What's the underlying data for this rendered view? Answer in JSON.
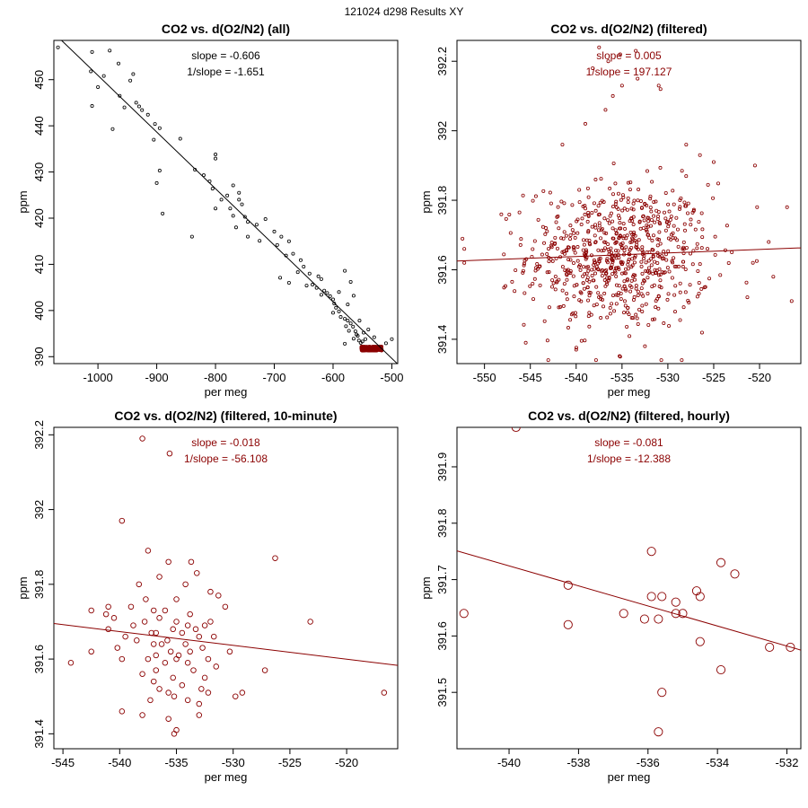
{
  "page": {
    "supertitle": "121024   d298   Results XY"
  },
  "colors": {
    "black": "#000000",
    "darkred": "#8b0000"
  },
  "chart_data": [
    {
      "type": "scatter",
      "title": "CO2 vs. d(O2/N2) (all)",
      "xlabel": "per meg",
      "ylabel": "ppm",
      "xlim": [
        -1075,
        -490
      ],
      "ylim": [
        388.5,
        458.5
      ],
      "xticks": [
        -1000,
        -900,
        -800,
        -700,
        -600,
        -500
      ],
      "yticks": [
        390,
        400,
        410,
        420,
        430,
        440,
        450
      ],
      "point_color": "#000000",
      "line_color": "#000000",
      "marker": "small",
      "annotations": [
        "slope = -0.606",
        "1/slope = -1.651"
      ],
      "annotation_color": "#000000",
      "fit": {
        "x": [
          -1075,
          -490
        ],
        "y": [
          460.1,
          388.4
        ]
      },
      "points": [
        {
          "x": -1068,
          "y": 457.0
        },
        {
          "x": -1010,
          "y": 456.0
        },
        {
          "x": -980,
          "y": 456.3
        },
        {
          "x": -965,
          "y": 453.5
        },
        {
          "x": -1012,
          "y": 451.8
        },
        {
          "x": -990,
          "y": 450.8
        },
        {
          "x": -940,
          "y": 451.2
        },
        {
          "x": -945,
          "y": 449.8
        },
        {
          "x": -1000,
          "y": 448.4
        },
        {
          "x": -963,
          "y": 446.5
        },
        {
          "x": -1010,
          "y": 444.3
        },
        {
          "x": -955,
          "y": 444.0
        },
        {
          "x": -935,
          "y": 445.0
        },
        {
          "x": -930,
          "y": 444.2
        },
        {
          "x": -925,
          "y": 443.4
        },
        {
          "x": -915,
          "y": 442.4
        },
        {
          "x": -903,
          "y": 440.4
        },
        {
          "x": -975,
          "y": 439.3
        },
        {
          "x": -895,
          "y": 439.5
        },
        {
          "x": -905,
          "y": 437.0
        },
        {
          "x": -860,
          "y": 437.2
        },
        {
          "x": -835,
          "y": 430.5
        },
        {
          "x": -895,
          "y": 430.3
        },
        {
          "x": -800,
          "y": 433.8
        },
        {
          "x": -800,
          "y": 432.9
        },
        {
          "x": -820,
          "y": 429.3
        },
        {
          "x": -810,
          "y": 428.0
        },
        {
          "x": -805,
          "y": 426.4
        },
        {
          "x": -900,
          "y": 427.6
        },
        {
          "x": -770,
          "y": 427.1
        },
        {
          "x": -760,
          "y": 425.5
        },
        {
          "x": -780,
          "y": 424.9
        },
        {
          "x": -790,
          "y": 424.0
        },
        {
          "x": -760,
          "y": 424.0
        },
        {
          "x": -755,
          "y": 423.0
        },
        {
          "x": -800,
          "y": 422.1
        },
        {
          "x": -775,
          "y": 422.1
        },
        {
          "x": -770,
          "y": 420.5
        },
        {
          "x": -750,
          "y": 420.3
        },
        {
          "x": -745,
          "y": 419.2
        },
        {
          "x": -765,
          "y": 418.0
        },
        {
          "x": -730,
          "y": 418.6
        },
        {
          "x": -715,
          "y": 419.8
        },
        {
          "x": -745,
          "y": 416.0
        },
        {
          "x": -700,
          "y": 417.1
        },
        {
          "x": -688,
          "y": 416.0
        },
        {
          "x": -725,
          "y": 415.1
        },
        {
          "x": -840,
          "y": 416.0
        },
        {
          "x": -890,
          "y": 421.0
        },
        {
          "x": -695,
          "y": 414.2
        },
        {
          "x": -675,
          "y": 415.0
        },
        {
          "x": -680,
          "y": 411.9
        },
        {
          "x": -668,
          "y": 412.3
        },
        {
          "x": -655,
          "y": 410.9
        },
        {
          "x": -650,
          "y": 409.5
        },
        {
          "x": -660,
          "y": 408.3
        },
        {
          "x": -640,
          "y": 408.0
        },
        {
          "x": -625,
          "y": 407.4
        },
        {
          "x": -620,
          "y": 406.8
        },
        {
          "x": -690,
          "y": 407.1
        },
        {
          "x": -675,
          "y": 406.0
        },
        {
          "x": -645,
          "y": 405.4
        },
        {
          "x": -635,
          "y": 405.6
        },
        {
          "x": -628,
          "y": 404.9
        },
        {
          "x": -615,
          "y": 404.3
        },
        {
          "x": -610,
          "y": 403.8
        },
        {
          "x": -620,
          "y": 403.4
        },
        {
          "x": -605,
          "y": 403.1
        },
        {
          "x": -600,
          "y": 402.4
        },
        {
          "x": -598,
          "y": 401.5
        },
        {
          "x": -595,
          "y": 400.6
        },
        {
          "x": -590,
          "y": 399.8
        },
        {
          "x": -587,
          "y": 398.6
        },
        {
          "x": -580,
          "y": 398.2
        },
        {
          "x": -575,
          "y": 397.8
        },
        {
          "x": -570,
          "y": 397.2
        },
        {
          "x": -578,
          "y": 396.6
        },
        {
          "x": -566,
          "y": 396.5
        },
        {
          "x": -573,
          "y": 395.6
        },
        {
          "x": -562,
          "y": 395.5
        },
        {
          "x": -558,
          "y": 394.5
        },
        {
          "x": -565,
          "y": 393.9
        },
        {
          "x": -556,
          "y": 393.5
        },
        {
          "x": -553,
          "y": 393.0
        },
        {
          "x": -550,
          "y": 393.3
        },
        {
          "x": -560,
          "y": 394.8
        },
        {
          "x": -575,
          "y": 401.3
        },
        {
          "x": -580,
          "y": 408.6
        },
        {
          "x": -570,
          "y": 406.2
        },
        {
          "x": -565,
          "y": 403.2
        },
        {
          "x": -590,
          "y": 404.0
        },
        {
          "x": -600,
          "y": 399.5
        },
        {
          "x": -555,
          "y": 397.8
        },
        {
          "x": -548,
          "y": 395.2
        },
        {
          "x": -540,
          "y": 395.9
        },
        {
          "x": -530,
          "y": 394.2
        },
        {
          "x": -510,
          "y": 392.9
        },
        {
          "x": -500,
          "y": 393.8
        },
        {
          "x": -545,
          "y": 393.8
        },
        {
          "x": -580,
          "y": 392.8
        }
      ],
      "cluster": {
        "x_range": [
          -552,
          -517
        ],
        "y_range": [
          391.3,
          392.2
        ],
        "count": 380,
        "color": "#8b0000"
      }
    },
    {
      "type": "scatter",
      "title": "CO2 vs. d(O2/N2) (filtered)",
      "xlabel": "per meg",
      "ylabel": "ppm",
      "xlim": [
        -553,
        -515.5
      ],
      "ylim": [
        391.33,
        392.26
      ],
      "xticks": [
        -550,
        -545,
        -540,
        -535,
        -530,
        -525,
        -520
      ],
      "yticks": [
        391.4,
        391.6,
        391.8,
        392.0,
        392.2
      ],
      "point_color": "#8b0000",
      "line_color": "#8b0000",
      "marker": "small",
      "annotations": [
        "slope = 0.005",
        "1/slope = 197.127"
      ],
      "annotation_color": "#8b0000",
      "fit": {
        "x": [
          -553,
          -515.5
        ],
        "y": [
          391.625,
          391.663
        ]
      },
      "generated": {
        "count": 720,
        "x_mean": -535.3,
        "x_sd": 5.0,
        "y_mean": 391.64,
        "y_sd": 0.105
      },
      "points": [
        {
          "x": -537.5,
          "y": 392.24
        },
        {
          "x": -535.2,
          "y": 392.22
        },
        {
          "x": -536.5,
          "y": 392.2
        },
        {
          "x": -533.5,
          "y": 392.23
        },
        {
          "x": -538.2,
          "y": 392.18
        },
        {
          "x": -533.3,
          "y": 392.15
        },
        {
          "x": -531.0,
          "y": 392.13
        },
        {
          "x": -530.8,
          "y": 392.12
        },
        {
          "x": -536.0,
          "y": 392.1
        },
        {
          "x": -535.0,
          "y": 392.13
        },
        {
          "x": -536.8,
          "y": 392.06
        },
        {
          "x": -539.0,
          "y": 392.02
        },
        {
          "x": -541.5,
          "y": 391.96
        },
        {
          "x": -528.0,
          "y": 391.96
        },
        {
          "x": -526.5,
          "y": 391.93
        },
        {
          "x": -520.5,
          "y": 391.9
        },
        {
          "x": -525.0,
          "y": 391.91
        },
        {
          "x": -517.0,
          "y": 391.78
        },
        {
          "x": -552.2,
          "y": 391.66
        },
        {
          "x": -552.2,
          "y": 391.62
        },
        {
          "x": -516.5,
          "y": 391.51
        },
        {
          "x": -519.0,
          "y": 391.68
        },
        {
          "x": -518.5,
          "y": 391.58
        },
        {
          "x": -545.5,
          "y": 391.39
        },
        {
          "x": -535.2,
          "y": 391.35
        },
        {
          "x": -532.5,
          "y": 391.38
        },
        {
          "x": -540.0,
          "y": 391.37
        }
      ]
    },
    {
      "type": "scatter",
      "title": "CO2 vs. d(O2/N2) (filtered, 10-minute)",
      "xlabel": "per meg",
      "ylabel": "ppm",
      "xlim": [
        -545.8,
        -515.5
      ],
      "ylim": [
        391.36,
        392.22
      ],
      "xticks": [
        -545,
        -540,
        -535,
        -530,
        -525,
        -520
      ],
      "yticks": [
        391.4,
        391.6,
        391.8,
        392.0,
        392.2
      ],
      "point_color": "#8b0000",
      "line_color": "#8b0000",
      "marker": "medium",
      "annotations": [
        "slope = -0.018",
        "1/slope = -56.108"
      ],
      "annotation_color": "#8b0000",
      "fit": {
        "x": [
          -545.8,
          -515.5
        ],
        "y": [
          391.695,
          391.583
        ]
      },
      "points": [
        {
          "x": -538.0,
          "y": 392.19
        },
        {
          "x": -535.6,
          "y": 392.15
        },
        {
          "x": -539.8,
          "y": 391.97
        },
        {
          "x": -537.5,
          "y": 391.89
        },
        {
          "x": -535.7,
          "y": 391.86
        },
        {
          "x": -533.7,
          "y": 391.86
        },
        {
          "x": -526.3,
          "y": 391.87
        },
        {
          "x": -533.2,
          "y": 391.83
        },
        {
          "x": -536.5,
          "y": 391.82
        },
        {
          "x": -538.3,
          "y": 391.8
        },
        {
          "x": -534.2,
          "y": 391.8
        },
        {
          "x": -532.0,
          "y": 391.78
        },
        {
          "x": -531.3,
          "y": 391.77
        },
        {
          "x": -535.0,
          "y": 391.76
        },
        {
          "x": -537.7,
          "y": 391.76
        },
        {
          "x": -530.7,
          "y": 391.74
        },
        {
          "x": -541.0,
          "y": 391.74
        },
        {
          "x": -539.0,
          "y": 391.74
        },
        {
          "x": -542.5,
          "y": 391.73
        },
        {
          "x": -537.0,
          "y": 391.73
        },
        {
          "x": -536.0,
          "y": 391.73
        },
        {
          "x": -533.8,
          "y": 391.72
        },
        {
          "x": -540.5,
          "y": 391.71
        },
        {
          "x": -536.5,
          "y": 391.71
        },
        {
          "x": -541.2,
          "y": 391.72
        },
        {
          "x": -532.0,
          "y": 391.7
        },
        {
          "x": -535.0,
          "y": 391.7
        },
        {
          "x": -537.8,
          "y": 391.7
        },
        {
          "x": -534.0,
          "y": 391.69
        },
        {
          "x": -532.5,
          "y": 391.69
        },
        {
          "x": -523.2,
          "y": 391.7
        },
        {
          "x": -538.8,
          "y": 391.69
        },
        {
          "x": -535.3,
          "y": 391.68
        },
        {
          "x": -533.3,
          "y": 391.68
        },
        {
          "x": -541.0,
          "y": 391.68
        },
        {
          "x": -536.8,
          "y": 391.67
        },
        {
          "x": -534.5,
          "y": 391.67
        },
        {
          "x": -537.2,
          "y": 391.67
        },
        {
          "x": -531.7,
          "y": 391.66
        },
        {
          "x": -539.5,
          "y": 391.66
        },
        {
          "x": -533.0,
          "y": 391.66
        },
        {
          "x": -538.5,
          "y": 391.65
        },
        {
          "x": -535.8,
          "y": 391.65
        },
        {
          "x": -536.3,
          "y": 391.64
        },
        {
          "x": -534.2,
          "y": 391.64
        },
        {
          "x": -537.0,
          "y": 391.64
        },
        {
          "x": -532.7,
          "y": 391.63
        },
        {
          "x": -540.2,
          "y": 391.63
        },
        {
          "x": -542.5,
          "y": 391.62
        },
        {
          "x": -535.5,
          "y": 391.62
        },
        {
          "x": -533.8,
          "y": 391.62
        },
        {
          "x": -536.8,
          "y": 391.61
        },
        {
          "x": -534.8,
          "y": 391.61
        },
        {
          "x": -530.3,
          "y": 391.62
        },
        {
          "x": -537.5,
          "y": 391.6
        },
        {
          "x": -535.0,
          "y": 391.6
        },
        {
          "x": -532.2,
          "y": 391.6
        },
        {
          "x": -539.8,
          "y": 391.6
        },
        {
          "x": -536.0,
          "y": 391.59
        },
        {
          "x": -534.0,
          "y": 391.59
        },
        {
          "x": -544.3,
          "y": 391.59
        },
        {
          "x": -531.5,
          "y": 391.58
        },
        {
          "x": -536.8,
          "y": 391.57
        },
        {
          "x": -533.5,
          "y": 391.57
        },
        {
          "x": -538.0,
          "y": 391.56
        },
        {
          "x": -527.2,
          "y": 391.57
        },
        {
          "x": -535.3,
          "y": 391.55
        },
        {
          "x": -532.5,
          "y": 391.55
        },
        {
          "x": -537.0,
          "y": 391.54
        },
        {
          "x": -534.5,
          "y": 391.53
        },
        {
          "x": -536.5,
          "y": 391.52
        },
        {
          "x": -532.8,
          "y": 391.52
        },
        {
          "x": -529.2,
          "y": 391.51
        },
        {
          "x": -529.8,
          "y": 391.5
        },
        {
          "x": -535.7,
          "y": 391.51
        },
        {
          "x": -532.2,
          "y": 391.51
        },
        {
          "x": -535.2,
          "y": 391.5
        },
        {
          "x": -534.0,
          "y": 391.49
        },
        {
          "x": -537.3,
          "y": 391.49
        },
        {
          "x": -533.0,
          "y": 391.48
        },
        {
          "x": -539.8,
          "y": 391.46
        },
        {
          "x": -533.0,
          "y": 391.45
        },
        {
          "x": -538.0,
          "y": 391.45
        },
        {
          "x": -535.7,
          "y": 391.44
        },
        {
          "x": -535.0,
          "y": 391.41
        },
        {
          "x": -535.2,
          "y": 391.4
        },
        {
          "x": -516.7,
          "y": 391.51
        }
      ]
    },
    {
      "type": "scatter",
      "title": "CO2 vs. d(O2/N2) (filtered, hourly)",
      "xlabel": "per meg",
      "ylabel": "ppm",
      "xlim": [
        -541.5,
        -531.6
      ],
      "ylim": [
        391.4,
        391.97
      ],
      "xticks": [
        -540,
        -538,
        -536,
        -534,
        -532
      ],
      "yticks": [
        391.5,
        391.6,
        391.7,
        391.8,
        391.9
      ],
      "point_color": "#8b0000",
      "line_color": "#8b0000",
      "marker": "large",
      "annotations": [
        "slope = -0.081",
        "1/slope = -12.388"
      ],
      "annotation_color": "#8b0000",
      "fit": {
        "x": [
          -541.5,
          -531.6
        ],
        "y": [
          391.751,
          391.575
        ]
      },
      "points": [
        {
          "x": -539.8,
          "y": 391.97
        },
        {
          "x": -541.3,
          "y": 391.64
        },
        {
          "x": -538.3,
          "y": 391.69
        },
        {
          "x": -538.3,
          "y": 391.62
        },
        {
          "x": -536.7,
          "y": 391.64
        },
        {
          "x": -535.9,
          "y": 391.75
        },
        {
          "x": -535.9,
          "y": 391.67
        },
        {
          "x": -536.1,
          "y": 391.63
        },
        {
          "x": -535.6,
          "y": 391.67
        },
        {
          "x": -535.7,
          "y": 391.63
        },
        {
          "x": -535.2,
          "y": 391.66
        },
        {
          "x": -535.2,
          "y": 391.64
        },
        {
          "x": -535.0,
          "y": 391.64
        },
        {
          "x": -534.6,
          "y": 391.68
        },
        {
          "x": -534.5,
          "y": 391.67
        },
        {
          "x": -534.5,
          "y": 391.59
        },
        {
          "x": -533.9,
          "y": 391.73
        },
        {
          "x": -533.5,
          "y": 391.71
        },
        {
          "x": -533.9,
          "y": 391.54
        },
        {
          "x": -535.6,
          "y": 391.5
        },
        {
          "x": -535.7,
          "y": 391.43
        },
        {
          "x": -532.5,
          "y": 391.58
        },
        {
          "x": -531.9,
          "y": 391.58
        }
      ]
    }
  ]
}
